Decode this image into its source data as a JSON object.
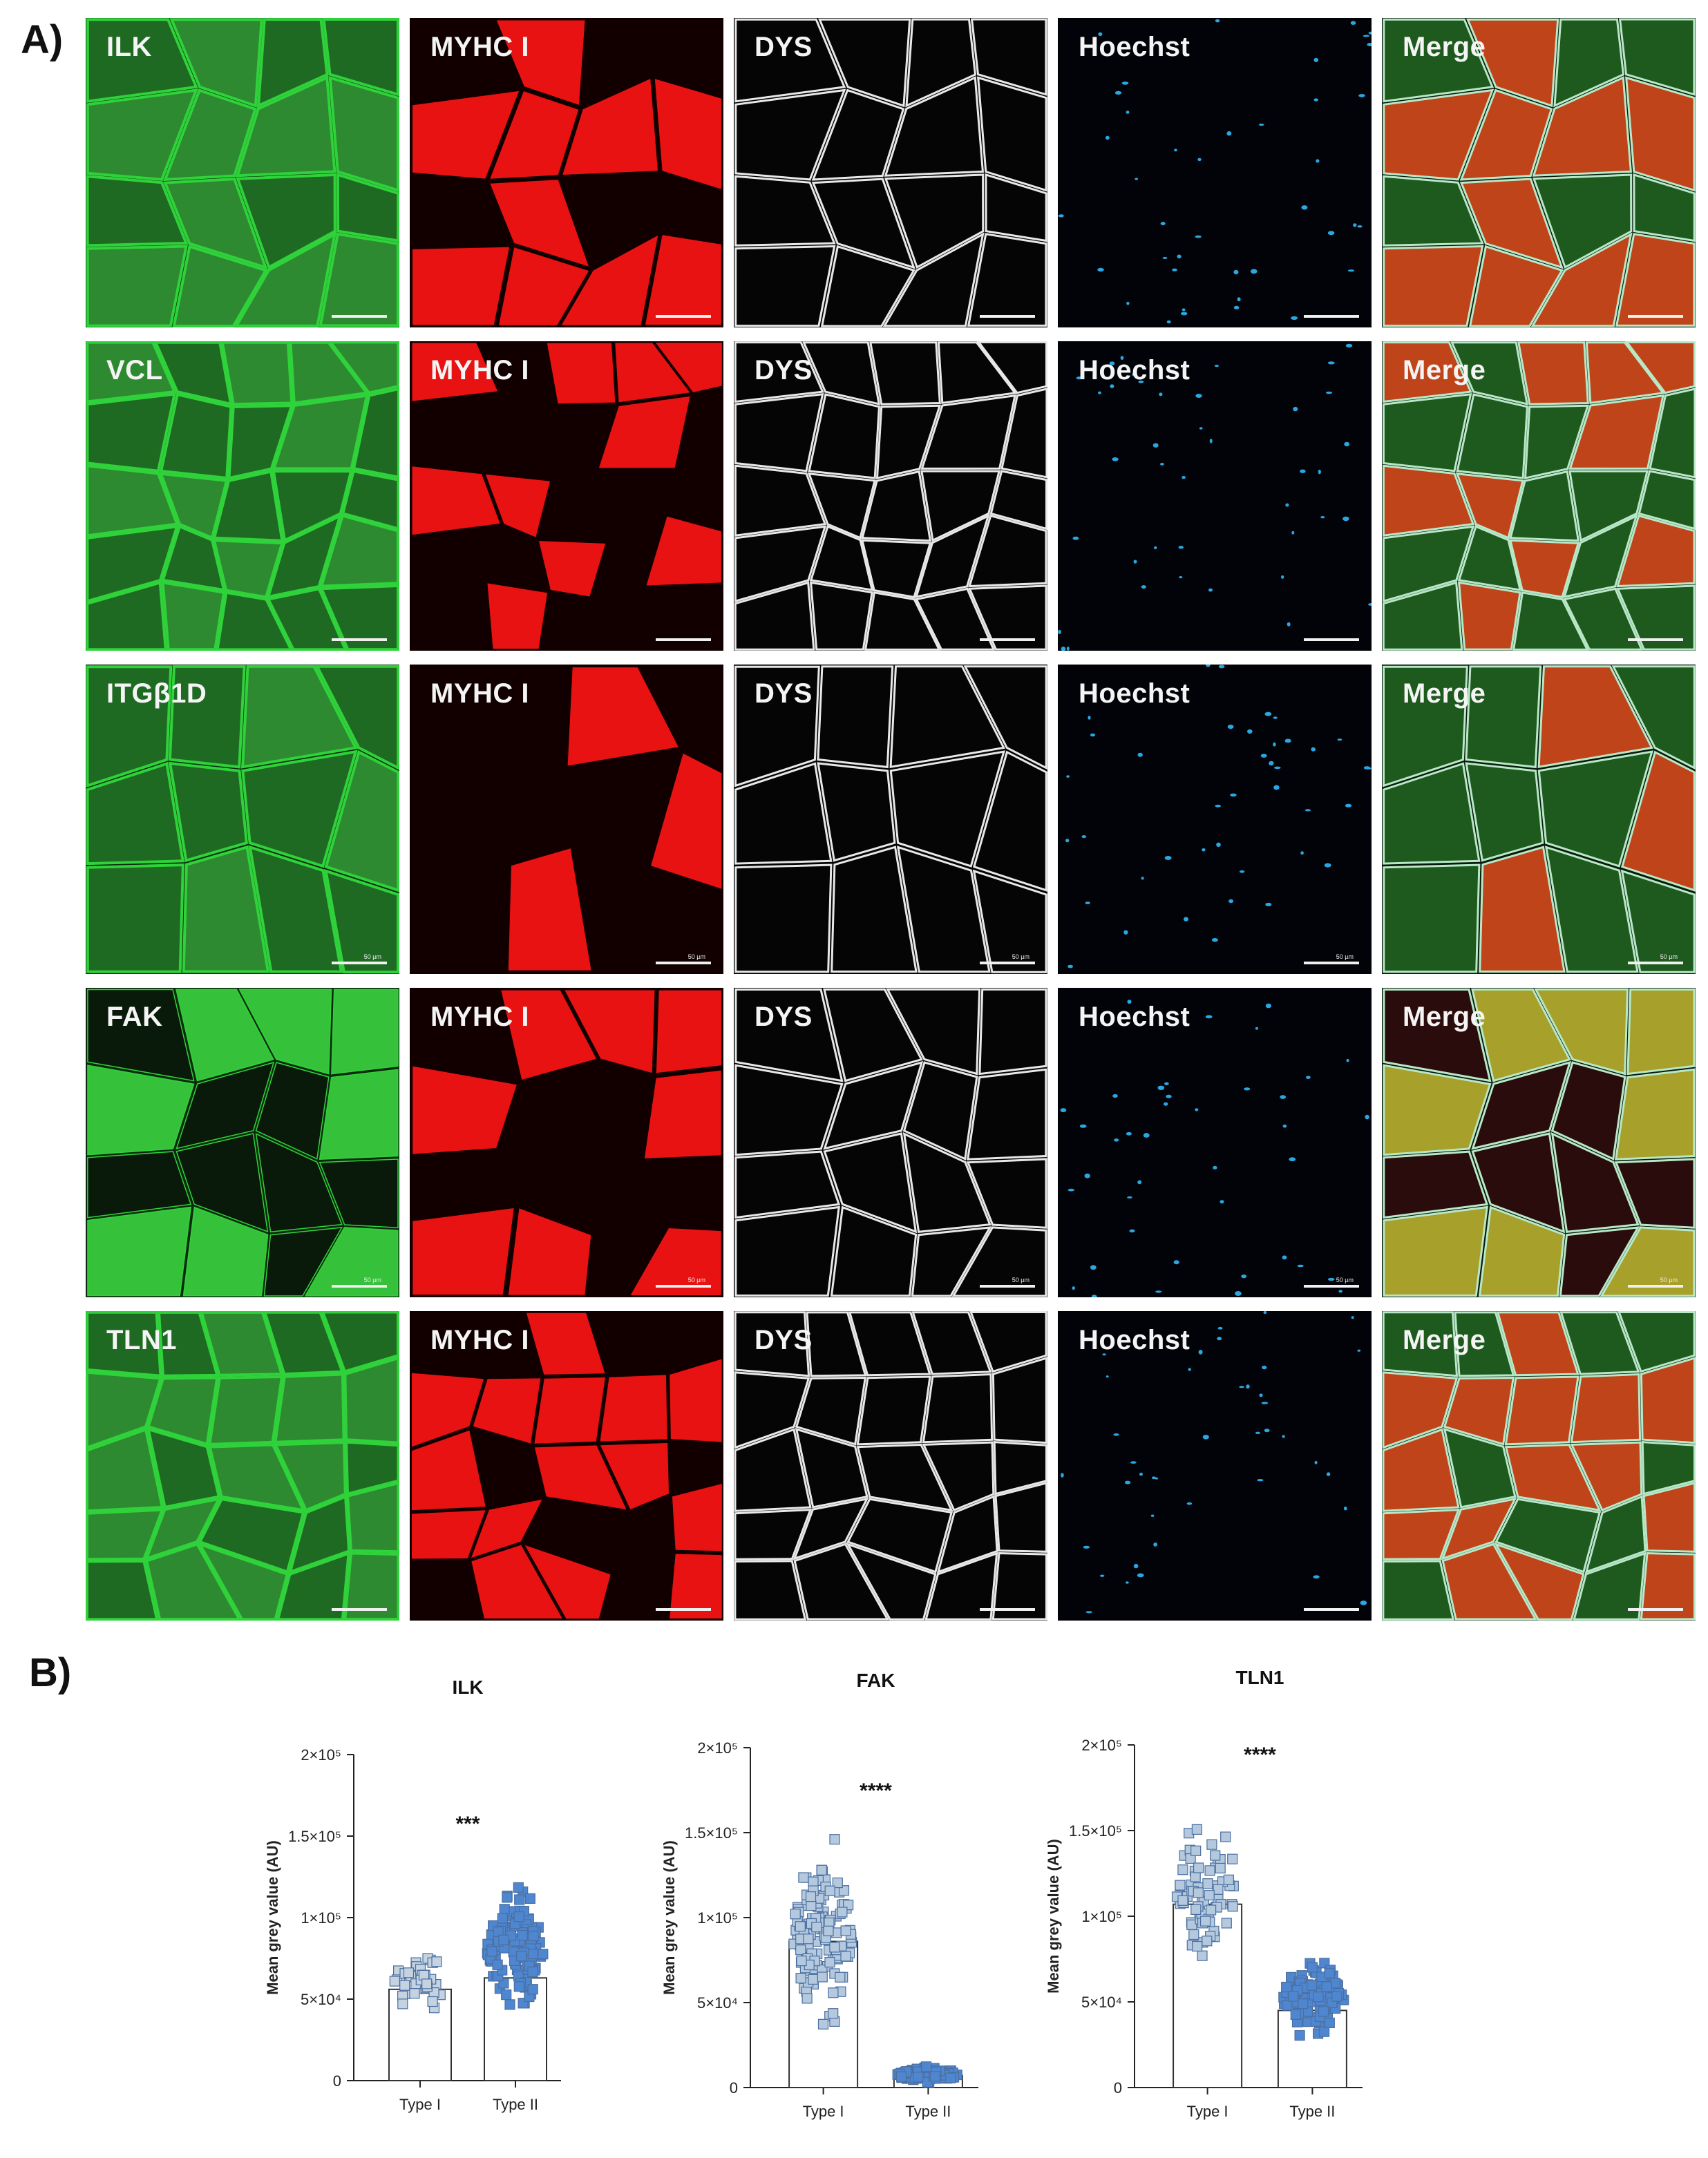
{
  "panel_a_label": "A)",
  "panel_b_label": "B)",
  "rows": [
    {
      "labels": [
        "ILK",
        "MYHC I",
        "DYS",
        "Hoechst",
        "Merge"
      ],
      "scale_text": "",
      "pattern": "coarse"
    },
    {
      "labels": [
        "VCL",
        "MYHC I",
        "DYS",
        "Hoechst",
        "Merge"
      ],
      "scale_text": "",
      "pattern": "fine"
    },
    {
      "labels": [
        "ITGβ1D",
        "MYHC I",
        "DYS",
        "Hoechst",
        "Merge"
      ],
      "scale_text": "50 µm",
      "pattern": "elongated"
    },
    {
      "labels": [
        "FAK",
        "MYHC I",
        "DYS",
        "Hoechst",
        "Merge"
      ],
      "scale_text": "50 µm",
      "pattern": "medium"
    },
    {
      "labels": [
        "TLN1",
        "MYHC I",
        "DYS",
        "Hoechst",
        "Merge"
      ],
      "scale_text": "",
      "pattern": "fine"
    }
  ],
  "channel_colors": {
    "target": "#2fd23a",
    "myhc": "#e81212",
    "dys": "#e8e8e8",
    "hoechst": "#2aa6e0",
    "merge_type1": "#c0441a",
    "merge_type2": "#1e5a1e",
    "merge_border": "#b8e8c8"
  },
  "chart_data": [
    {
      "type": "bar",
      "title": "ILK",
      "categories": [
        "Type I",
        "Type II"
      ],
      "values": [
        56000,
        63000
      ],
      "ylabel": "Mean grey value (AU)",
      "ylim": [
        0,
        200000
      ],
      "yticks": [
        "0",
        "5×10⁴",
        "1×10⁵",
        "1.5×10⁵",
        "2×10⁵"
      ],
      "significance": "***",
      "points": {
        "Type I": {
          "n": 40,
          "min": 37000,
          "max": 84000
        },
        "Type II": {
          "n": 120,
          "min": 33000,
          "max": 128000
        }
      },
      "marker_colors": {
        "Type I": "#c5d2e0",
        "Type II": "#4f86d0"
      }
    },
    {
      "type": "bar",
      "title": "FAK",
      "categories": [
        "Type I",
        "Type II"
      ],
      "values": [
        86000,
        7000
      ],
      "ylabel": "Mean grey value (AU)",
      "ylim": [
        0,
        200000
      ],
      "yticks": [
        "0",
        "5×10⁴",
        "1×10⁵",
        "1.5×10⁵",
        "2×10⁵"
      ],
      "significance": "****",
      "points": {
        "Type I": {
          "n": 130,
          "min": 22000,
          "max": 158000
        },
        "Type II": {
          "n": 90,
          "min": 1000,
          "max": 14000
        }
      },
      "marker_colors": {
        "Type I": "#b4c8de",
        "Type II": "#4f86d0"
      }
    },
    {
      "type": "bar",
      "title": "TLN1",
      "categories": [
        "Type I",
        "Type II"
      ],
      "values": [
        107000,
        45000
      ],
      "ylabel": "Mean grey value (AU)",
      "ylim": [
        0,
        200000
      ],
      "yticks": [
        "0",
        "5×10⁴",
        "1×10⁵",
        "1.5×10⁵",
        "2×10⁵"
      ],
      "significance": "****",
      "points": {
        "Type I": {
          "n": 70,
          "min": 55000,
          "max": 173000
        },
        "Type II": {
          "n": 100,
          "min": 25000,
          "max": 80000
        }
      },
      "marker_colors": {
        "Type I": "#b4c8de",
        "Type II": "#4f86d0"
      }
    }
  ]
}
